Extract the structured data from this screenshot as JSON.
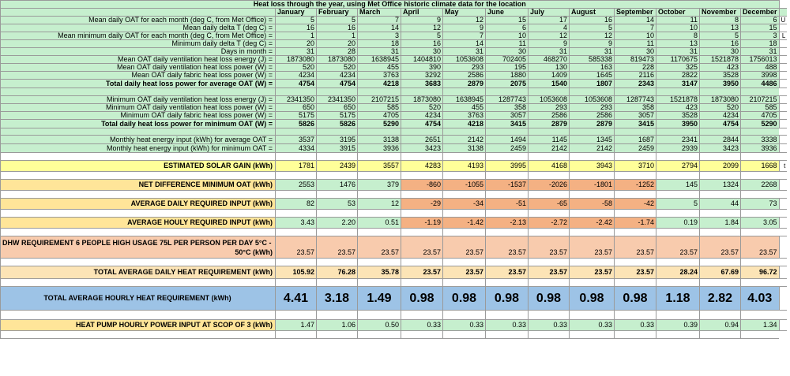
{
  "title": "Heat loss through the year, using Met Office historic climate data for the location",
  "months": [
    "January",
    "February",
    "March",
    "April",
    "May",
    "June",
    "July",
    "August",
    "September",
    "October",
    "November",
    "December"
  ],
  "rows": {
    "mean_oat": {
      "label": "Mean daily OAT for each month (deg C, from Met Office) =",
      "values": [
        "5",
        "5",
        "7",
        "9",
        "12",
        "15",
        "17",
        "16",
        "14",
        "11",
        "8",
        "6"
      ],
      "extra": "U"
    },
    "mean_delta": {
      "label": "Mean daily delta T (deg C) =",
      "values": [
        "16",
        "16",
        "14",
        "12",
        "9",
        "6",
        "4",
        "5",
        "7",
        "10",
        "13",
        "15"
      ],
      "extra": ""
    },
    "min_oat": {
      "label": "Mean minimum daily OAT for each month (deg C, from Met Office) =",
      "values": [
        "1",
        "1",
        "3",
        "5",
        "7",
        "10",
        "12",
        "12",
        "10",
        "8",
        "5",
        "3"
      ],
      "extra": "L"
    },
    "min_delta": {
      "label": "Minimum daily delta T (deg C) =",
      "values": [
        "20",
        "20",
        "18",
        "16",
        "14",
        "11",
        "9",
        "9",
        "11",
        "13",
        "16",
        "18"
      ],
      "extra": ""
    },
    "days": {
      "label": "Days in month =",
      "values": [
        "31",
        "28",
        "31",
        "30",
        "31",
        "30",
        "31",
        "31",
        "30",
        "31",
        "30",
        "31"
      ],
      "extra": ""
    },
    "vent_energy": {
      "label": "Mean OAT daily ventilation heat loss energy (J) =",
      "values": [
        "1873080",
        "1873080",
        "1638945",
        "1404810",
        "1053608",
        "702405",
        "468270",
        "585338",
        "819473",
        "1170675",
        "1521878",
        "1756013"
      ],
      "extra": ""
    },
    "vent_power": {
      "label": "Mean OAT daily ventilation heat loss power (W) =",
      "values": [
        "520",
        "520",
        "455",
        "390",
        "293",
        "195",
        "130",
        "163",
        "228",
        "325",
        "423",
        "488"
      ],
      "extra": ""
    },
    "fabric_power": {
      "label": "Mean OAT daily fabric heat loss power (W) =",
      "values": [
        "4234",
        "4234",
        "3763",
        "3292",
        "2586",
        "1880",
        "1409",
        "1645",
        "2116",
        "2822",
        "3528",
        "3998"
      ],
      "extra": ""
    },
    "total_avg": {
      "label": "Total daily heat loss power for average OAT (W) =",
      "values": [
        "4754",
        "4754",
        "4218",
        "3683",
        "2879",
        "2075",
        "1540",
        "1807",
        "2343",
        "3147",
        "3950",
        "4486"
      ],
      "extra": ""
    },
    "min_vent_energy": {
      "label": "Minimum OAT daily ventilation heat loss energy (J) =",
      "values": [
        "2341350",
        "2341350",
        "2107215",
        "1873080",
        "1638945",
        "1287743",
        "1053608",
        "1053608",
        "1287743",
        "1521878",
        "1873080",
        "2107215"
      ],
      "extra": ""
    },
    "min_vent_power": {
      "label": "Minimum OAT daily ventilation heat loss power (W) =",
      "values": [
        "650",
        "650",
        "585",
        "520",
        "455",
        "358",
        "293",
        "293",
        "358",
        "423",
        "520",
        "585"
      ],
      "extra": ""
    },
    "min_fabric_power": {
      "label": "Minimum OAT daily fabric heat loss power (W) =",
      "values": [
        "5175",
        "5175",
        "4705",
        "4234",
        "3763",
        "3057",
        "2586",
        "2586",
        "3057",
        "3528",
        "4234",
        "4705"
      ],
      "extra": ""
    },
    "total_min": {
      "label": "Total daily heat loss power for minimum OAT (W) =",
      "values": [
        "5826",
        "5826",
        "5290",
        "4754",
        "4218",
        "3415",
        "2879",
        "2879",
        "3415",
        "3950",
        "4754",
        "5290"
      ],
      "extra": ""
    },
    "monthly_avg": {
      "label": "Monthly heat energy input (kWh) for average OAT =",
      "values": [
        "3537",
        "3195",
        "3138",
        "2651",
        "2142",
        "1494",
        "1145",
        "1345",
        "1687",
        "2341",
        "2844",
        "3338"
      ],
      "extra": ""
    },
    "monthly_min": {
      "label": "Monthly heat energy input (kWh) for minimum OAT =",
      "values": [
        "4334",
        "3915",
        "3936",
        "3423",
        "3138",
        "2459",
        "2142",
        "2142",
        "2459",
        "2939",
        "3423",
        "3936"
      ],
      "extra": ""
    },
    "solar": {
      "label": "ESTIMATED SOLAR GAIN (kWh)",
      "values": [
        "1781",
        "2439",
        "3557",
        "4283",
        "4193",
        "3995",
        "4168",
        "3943",
        "3710",
        "2794",
        "2099",
        "1668"
      ],
      "extra": "t"
    },
    "net_diff": {
      "label": "NET DIFFERENCE MINIMUM OAT (kWh)",
      "values": [
        "2553",
        "1476",
        "379",
        "-860",
        "-1055",
        "-1537",
        "-2026",
        "-1801",
        "-1252",
        "145",
        "1324",
        "2268"
      ],
      "extra": ""
    },
    "avg_daily": {
      "label": "AVERAGE DAILY REQUIRED INPUT (kWh)",
      "values": [
        "82",
        "53",
        "12",
        "-29",
        "-34",
        "-51",
        "-65",
        "-58",
        "-42",
        "5",
        "44",
        "73"
      ],
      "extra": ""
    },
    "avg_hourly": {
      "label": "AVERAGE HOULY REQUIRED INPUT (kWh)",
      "values": [
        "3.43",
        "2.20",
        "0.51",
        "-1.19",
        "-1.42",
        "-2.13",
        "-2.72",
        "-2.42",
        "-1.74",
        "0.19",
        "1.84",
        "3.05"
      ],
      "extra": ""
    },
    "dhw": {
      "label1": "DHW REQUIREMENT 6 PEOPLE HIGH USAGE 75L PER PERSON PER DAY 5°C -",
      "label2": "50°C (kWh)",
      "values": [
        "23.57",
        "23.57",
        "23.57",
        "23.57",
        "23.57",
        "23.57",
        "23.57",
        "23.57",
        "23.57",
        "23.57",
        "23.57",
        "23.57"
      ],
      "extra": ""
    },
    "total_daily": {
      "label": "TOTAL AVERAGE DAILY HEAT REQUIREMENT (kWh)",
      "values": [
        "105.92",
        "76.28",
        "35.78",
        "23.57",
        "23.57",
        "23.57",
        "23.57",
        "23.57",
        "23.57",
        "28.24",
        "67.69",
        "96.72"
      ],
      "extra": ""
    },
    "total_hourly": {
      "label": "TOTAL AVERAGE HOURLY HEAT REQUIREMENT (kWh)",
      "values": [
        "4.41",
        "3.18",
        "1.49",
        "0.98",
        "0.98",
        "0.98",
        "0.98",
        "0.98",
        "0.98",
        "1.18",
        "2.82",
        "4.03"
      ],
      "extra": ""
    },
    "hp_input": {
      "label": "HEAT PUMP HOURLY POWER INPUT AT SCOP OF 3 (kWh)",
      "values": [
        "1.47",
        "1.06",
        "0.50",
        "0.33",
        "0.33",
        "0.33",
        "0.33",
        "0.33",
        "0.33",
        "0.39",
        "0.94",
        "1.34"
      ],
      "extra": ""
    }
  },
  "colors": {
    "green": "#c6efce",
    "yellow": "#ffff99",
    "orange": "#f8cbad",
    "blue": "#9dc3e6"
  }
}
